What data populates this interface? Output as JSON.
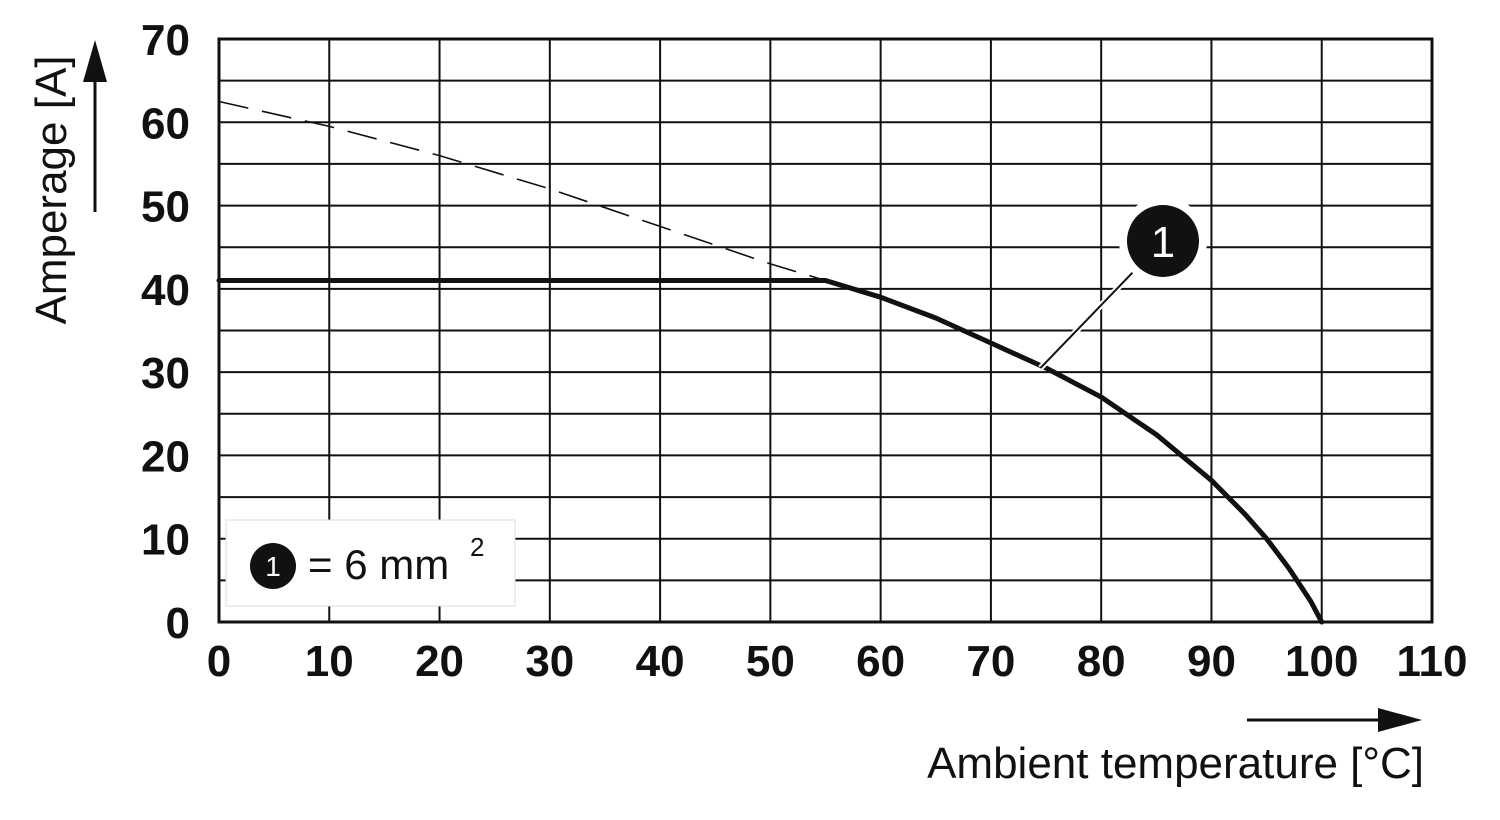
{
  "chart_data": {
    "type": "line",
    "xlabel": "Ambient temperature [°C]",
    "ylabel": "Amperage [A]",
    "xlim": [
      0,
      110
    ],
    "ylim": [
      0,
      70
    ],
    "x_ticks": [
      0,
      10,
      20,
      30,
      40,
      50,
      60,
      70,
      80,
      90,
      100,
      110
    ],
    "y_ticks": [
      0,
      10,
      20,
      30,
      40,
      50,
      60,
      70
    ],
    "grid": true,
    "series": [
      {
        "marker_label": "1",
        "style": "solid",
        "x": [
          0,
          55,
          60,
          65,
          70,
          75,
          80,
          85,
          90,
          93,
          95,
          97,
          98,
          99,
          100
        ],
        "y": [
          41,
          41,
          39,
          36.5,
          33.5,
          30.5,
          27,
          22.5,
          17,
          13,
          10,
          6.5,
          4.5,
          2.5,
          0
        ]
      },
      {
        "style": "dashed",
        "x": [
          0,
          10,
          20,
          30,
          40,
          50,
          55
        ],
        "y": [
          62.5,
          59.5,
          56,
          52,
          47.5,
          43,
          41
        ]
      }
    ],
    "annotations": [
      {
        "marker_label": "1",
        "x": 74.5,
        "y": 30.5
      }
    ],
    "legend": {
      "position": "bottom-left",
      "marker_label": "1",
      "text": "= 6 mm",
      "superscript": "2"
    },
    "colors": {
      "line": "#111111",
      "grid": "#111111",
      "marker_fill": "#111111"
    }
  }
}
